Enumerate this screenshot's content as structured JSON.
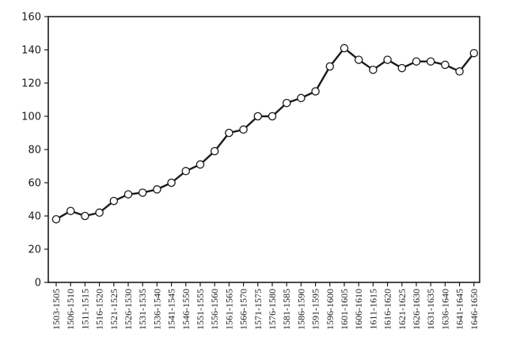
{
  "chart_data": {
    "type": "line",
    "title": "",
    "xlabel": "",
    "ylabel": "",
    "ylim": [
      0,
      160
    ],
    "yticks": [
      0,
      20,
      40,
      60,
      80,
      100,
      120,
      140,
      160
    ],
    "grid": false,
    "legend": "none",
    "marker": "open-circle",
    "line_color": "#1a1a1a",
    "categories": [
      "1503-1505",
      "1506-1510",
      "1511-1515",
      "1516-1520",
      "1521-1525",
      "1526-1530",
      "1531-1535",
      "1536-1540",
      "1541-1545",
      "1546-1550",
      "1551-1555",
      "1556-1560",
      "1561-1565",
      "1566-1570",
      "1571-1575",
      "1576-1580",
      "1581-1585",
      "1586-1590",
      "1591-1595",
      "1596-1600",
      "1601-1605",
      "1606-1610",
      "1611-1615",
      "1616-1620",
      "1621-1625",
      "1626-1630",
      "1631-1635",
      "1636-1640",
      "1641-1645",
      "1646-1650"
    ],
    "values": [
      38,
      43,
      40,
      42,
      49,
      53,
      54,
      56,
      60,
      67,
      71,
      79,
      90,
      92,
      100,
      100,
      108,
      111,
      115,
      130,
      141,
      134,
      128,
      134,
      129,
      133,
      133,
      131,
      127,
      138
    ]
  }
}
